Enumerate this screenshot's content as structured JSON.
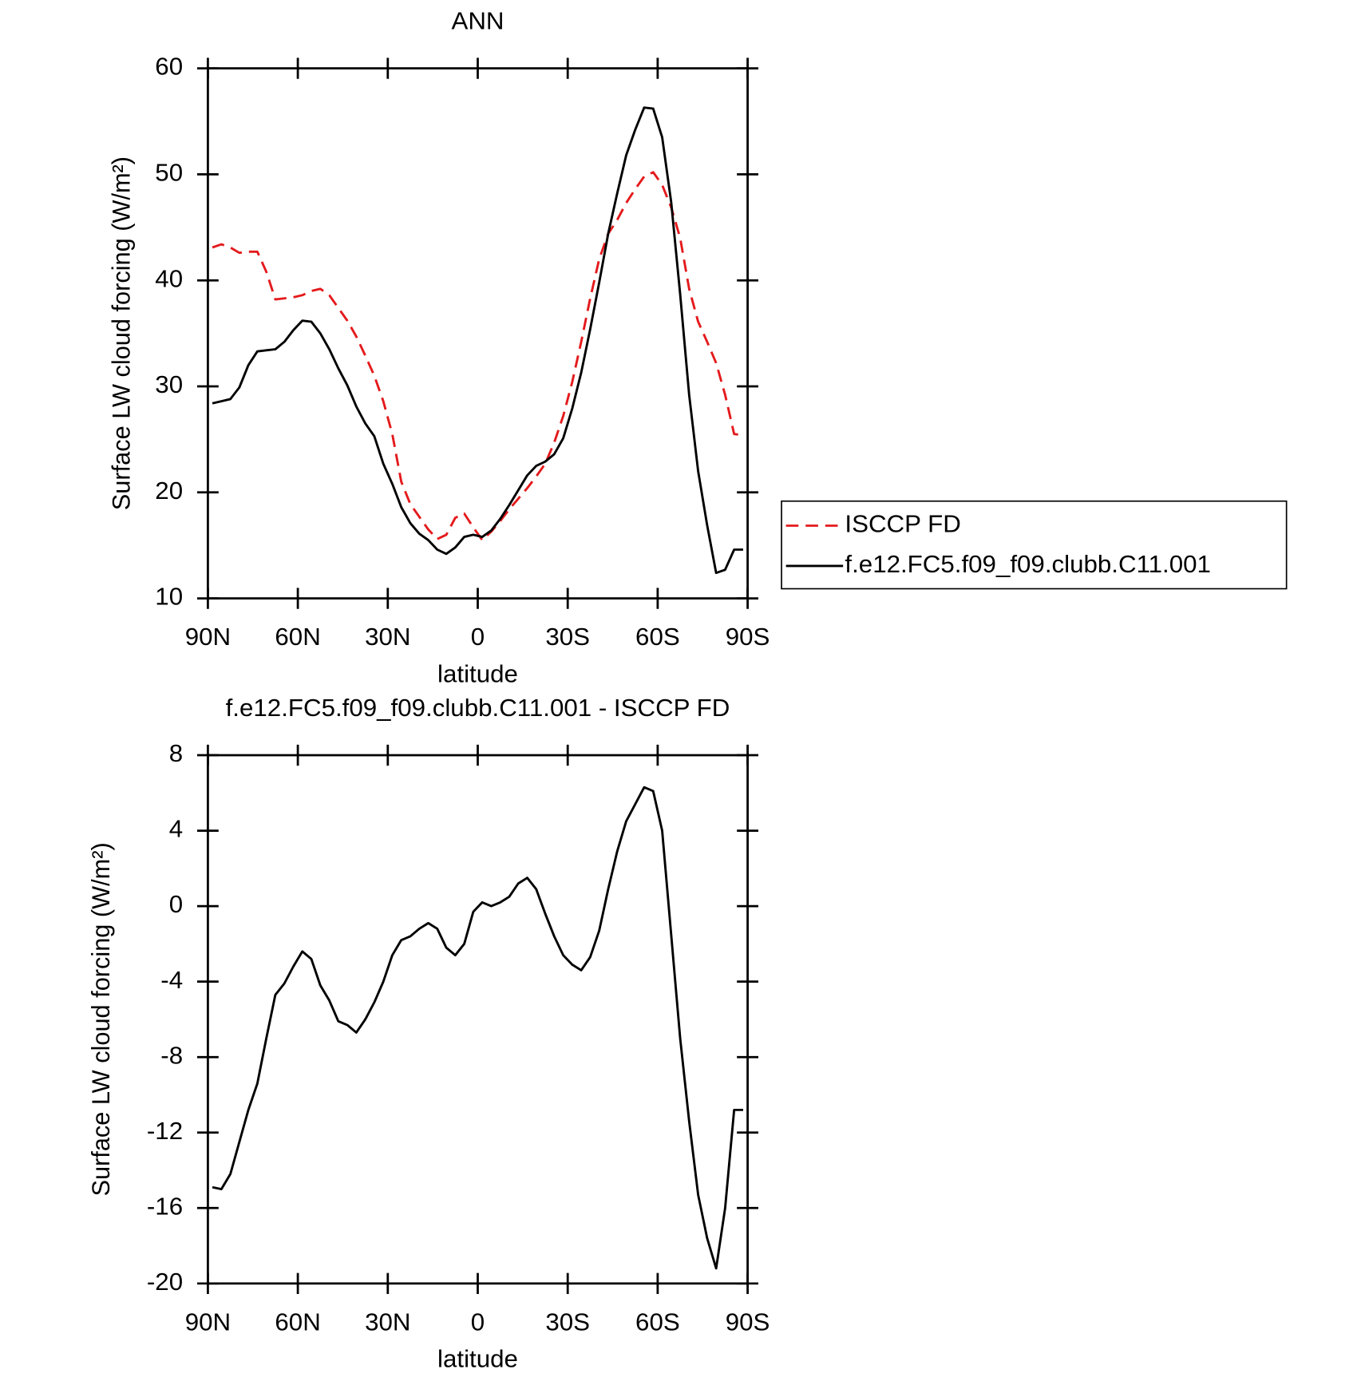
{
  "chart_data": [
    {
      "type": "line",
      "title": "ANN",
      "xlabel": "latitude",
      "ylabel": "Surface LW cloud forcing (W/m²)",
      "x": [
        88.5,
        85.5,
        82.5,
        79.5,
        76.5,
        73.5,
        70.5,
        67.5,
        64.5,
        61.5,
        58.5,
        55.5,
        52.5,
        49.5,
        46.5,
        43.5,
        40.5,
        37.5,
        34.5,
        31.5,
        28.5,
        25.5,
        22.5,
        19.5,
        16.5,
        13.5,
        10.5,
        7.5,
        4.5,
        1.5,
        -1.5,
        -4.5,
        -7.5,
        -10.5,
        -13.5,
        -16.5,
        -19.5,
        -22.5,
        -25.5,
        -28.5,
        -31.5,
        -34.5,
        -37.5,
        -40.5,
        -43.5,
        -46.5,
        -49.5,
        -52.5,
        -55.5,
        -58.5,
        -61.5,
        -64.5,
        -67.5,
        -70.5,
        -73.5,
        -76.5,
        -79.5,
        -82.5,
        -85.5,
        -88.5
      ],
      "series": [
        {
          "name": "ISCCP FD",
          "color": "#e41a1c",
          "style": "dashed",
          "values": [
            43.1,
            43.4,
            43.1,
            42.6,
            42.7,
            42.7,
            40.8,
            38.2,
            38.3,
            38.4,
            38.6,
            39.0,
            39.2,
            38.6,
            37.4,
            36.2,
            34.7,
            32.9,
            31.0,
            28.6,
            25.5,
            21.0,
            18.9,
            17.7,
            16.5,
            15.6,
            16.0,
            17.6,
            18.0,
            16.7,
            15.5,
            16.3,
            17.3,
            18.4,
            19.4,
            20.4,
            21.5,
            22.7,
            24.7,
            27.2,
            30.4,
            34.2,
            38.3,
            42.0,
            44.4,
            45.7,
            47.3,
            48.6,
            49.8,
            50.2,
            49.0,
            46.9,
            44.0,
            39.2,
            36.1,
            34.2,
            32.2,
            29.2,
            25.5,
            25.4
          ]
        },
        {
          "name": "f.e12.FC5.f09_f09.clubb.C11.001",
          "color": "#000000",
          "style": "solid",
          "values": [
            28.4,
            28.6,
            28.8,
            29.9,
            32.0,
            33.3,
            33.4,
            33.5,
            34.2,
            35.3,
            36.2,
            36.1,
            35.0,
            33.5,
            31.7,
            30.1,
            28.1,
            26.5,
            25.3,
            22.7,
            20.8,
            18.6,
            17.1,
            16.1,
            15.5,
            14.6,
            14.2,
            14.8,
            15.8,
            16.0,
            15.8,
            16.4,
            17.5,
            18.8,
            20.2,
            21.6,
            22.5,
            22.9,
            23.6,
            25.1,
            27.9,
            31.3,
            35.4,
            39.8,
            44.4,
            48.2,
            51.8,
            54.2,
            56.3,
            56.2,
            53.5,
            47.4,
            38.7,
            29.2,
            22.0,
            16.9,
            12.4,
            12.7,
            14.6,
            14.6
          ]
        }
      ],
      "xlim": [
        90,
        -90
      ],
      "xticks": [
        {
          "value": 90,
          "label": "90N"
        },
        {
          "value": 60,
          "label": "60N"
        },
        {
          "value": 30,
          "label": "30N"
        },
        0,
        {
          "value": -30,
          "label": "30S"
        },
        {
          "value": -60,
          "label": "60S"
        },
        {
          "value": -90,
          "label": "90S"
        }
      ],
      "ylim": [
        10,
        60
      ],
      "yticks": [
        10,
        20,
        30,
        40,
        50,
        60
      ],
      "legend": "right"
    },
    {
      "type": "line",
      "title": "f.e12.FC5.f09_f09.clubb.C11.001 - ISCCP FD",
      "xlabel": "latitude",
      "ylabel": "Surface LW cloud forcing (W/m²)",
      "x": [
        88.5,
        85.5,
        82.5,
        79.5,
        76.5,
        73.5,
        70.5,
        67.5,
        64.5,
        61.5,
        58.5,
        55.5,
        52.5,
        49.5,
        46.5,
        43.5,
        40.5,
        37.5,
        34.5,
        31.5,
        28.5,
        25.5,
        22.5,
        19.5,
        16.5,
        13.5,
        10.5,
        7.5,
        4.5,
        1.5,
        -1.5,
        -4.5,
        -7.5,
        -10.5,
        -13.5,
        -16.5,
        -19.5,
        -22.5,
        -25.5,
        -28.5,
        -31.5,
        -34.5,
        -37.5,
        -40.5,
        -43.5,
        -46.5,
        -49.5,
        -52.5,
        -55.5,
        -58.5,
        -61.5,
        -64.5,
        -67.5,
        -70.5,
        -73.5,
        -76.5,
        -79.5,
        -82.5,
        -85.5,
        -88.5
      ],
      "values": [
        -14.9,
        -15.0,
        -14.2,
        -12.5,
        -10.8,
        -9.4,
        -7.0,
        -4.7,
        -4.1,
        -3.2,
        -2.4,
        -2.8,
        -4.2,
        -5.0,
        -6.1,
        -6.3,
        -6.7,
        -6.0,
        -5.1,
        -4.0,
        -2.6,
        -1.8,
        -1.6,
        -1.2,
        -0.9,
        -1.2,
        -2.2,
        -2.6,
        -2.0,
        -0.3,
        0.2,
        0.0,
        0.2,
        0.5,
        1.2,
        1.5,
        0.9,
        -0.4,
        -1.6,
        -2.6,
        -3.1,
        -3.4,
        -2.7,
        -1.3,
        0.9,
        2.9,
        4.5,
        5.4,
        6.3,
        6.1,
        4.0,
        -1.5,
        -7.0,
        -11.4,
        -15.3,
        -17.6,
        -19.2,
        -16.0,
        -10.8,
        -10.8
      ],
      "color": "#000000",
      "xlim": [
        90,
        -90
      ],
      "xticks": [
        {
          "value": 90,
          "label": "90N"
        },
        {
          "value": 60,
          "label": "60N"
        },
        {
          "value": 30,
          "label": "30N"
        },
        0,
        {
          "value": -30,
          "label": "30S"
        },
        {
          "value": -60,
          "label": "60S"
        },
        {
          "value": -90,
          "label": "90S"
        }
      ],
      "ylim": [
        -20,
        8
      ],
      "yticks": [
        -20,
        -16,
        -12,
        -8,
        -4,
        0,
        4,
        8
      ]
    }
  ]
}
